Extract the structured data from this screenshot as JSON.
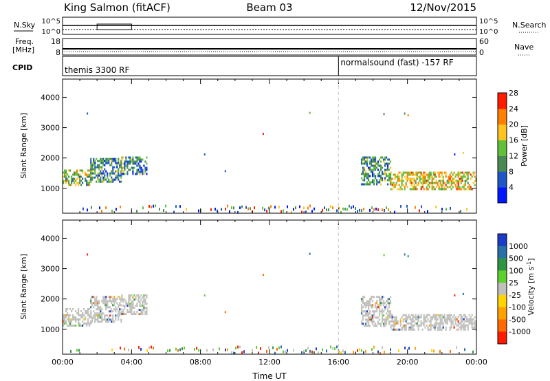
{
  "header": {
    "station": "King Salmon (fitACF)",
    "beam": "Beam 03",
    "date": "12/Nov/2015"
  },
  "strips": {
    "nsky_label": "N.Sky",
    "nsky_ticks": [
      "10^5",
      "10^0"
    ],
    "nsearch_label": "N.Search",
    "nsearch_ticks": [
      "10^5",
      "10^0"
    ],
    "freq_label": "Freq.",
    "freq_unit": "[MHz]",
    "freq_ticks": [
      "18",
      "8"
    ],
    "nave_label": "Nave",
    "nave_ticks": [
      "60",
      "0"
    ],
    "cpid_label": "CPID",
    "cpid_segments": [
      {
        "label": "themis 3300 RF",
        "start_hour": 0,
        "end_hour": 16
      },
      {
        "label": "normalsound (fast) -157 RF",
        "start_hour": 16,
        "end_hour": 24
      }
    ]
  },
  "chart_data": [
    {
      "type": "heatmap",
      "name": "power",
      "ylabel": "Slant Range [km]",
      "xlabel": "",
      "yticks": [
        "1000",
        "2000",
        "3000",
        "4000"
      ],
      "ylim": [
        180,
        4600
      ],
      "xlim_hours": [
        0,
        24
      ],
      "mode_change_hour": 16,
      "colorbar": {
        "label": "Power [dB]",
        "ticks": [
          "4",
          "8",
          "12",
          "16",
          "20",
          "24",
          "28"
        ],
        "colors": [
          "#0016ff",
          "#1f56c8",
          "#4a8a52",
          "#62bf3a",
          "#ffc41f",
          "#ff7f00",
          "#ff1a00"
        ]
      },
      "echo_regions": [
        {
          "t0": 0.0,
          "t1": 1.6,
          "r0": 1120,
          "r1": 1620,
          "level": 3,
          "peak": 5
        },
        {
          "t0": 1.6,
          "t1": 3.4,
          "r0": 1250,
          "r1": 2000,
          "level": 2,
          "peak": 4
        },
        {
          "t0": 3.4,
          "t1": 4.9,
          "r0": 1500,
          "r1": 2050,
          "level": 2,
          "peak": 4
        },
        {
          "t0": 17.3,
          "t1": 19.0,
          "r0": 1100,
          "r1": 2050,
          "level": 2,
          "peak": 4
        },
        {
          "t0": 19.0,
          "t1": 24.0,
          "r0": 1000,
          "r1": 1550,
          "level": 4,
          "peak": 6
        }
      ]
    },
    {
      "type": "heatmap",
      "name": "velocity",
      "ylabel": "Slant Range [km]",
      "xlabel": "Time UT",
      "yticks": [
        "1000",
        "2000",
        "3000",
        "4000"
      ],
      "xticks": [
        "00:00",
        "04:00",
        "08:00",
        "12:00",
        "16:00",
        "20:00",
        "00:00"
      ],
      "ylim": [
        180,
        4600
      ],
      "xlim_hours": [
        0,
        24
      ],
      "mode_change_hour": 16,
      "colorbar": {
        "label": "Velocity [m s^-1]",
        "ticks": [
          "1000",
          "500",
          "100",
          "25",
          "-25",
          "-100",
          "-500",
          "-1000"
        ],
        "colors": [
          "#1a3cc8",
          "#2a6fa8",
          "#2e9440",
          "#5cd12e",
          "#c0c0bc",
          "#ffd400",
          "#ffa200",
          "#ff6a00",
          "#ff1a00"
        ]
      },
      "echo_regions": [
        {
          "t0": 0.0,
          "t1": 1.6,
          "r0": 1120,
          "r1": 1700,
          "level": 4
        },
        {
          "t0": 1.6,
          "t1": 3.4,
          "r0": 1250,
          "r1": 2100,
          "level": 4
        },
        {
          "t0": 3.4,
          "t1": 4.9,
          "r0": 1500,
          "r1": 2150,
          "level": 4
        },
        {
          "t0": 17.3,
          "t1": 19.0,
          "r0": 1100,
          "r1": 2100,
          "level": 4
        },
        {
          "t0": 19.0,
          "t1": 24.0,
          "r0": 1000,
          "r1": 1500,
          "level": 4
        }
      ]
    }
  ]
}
